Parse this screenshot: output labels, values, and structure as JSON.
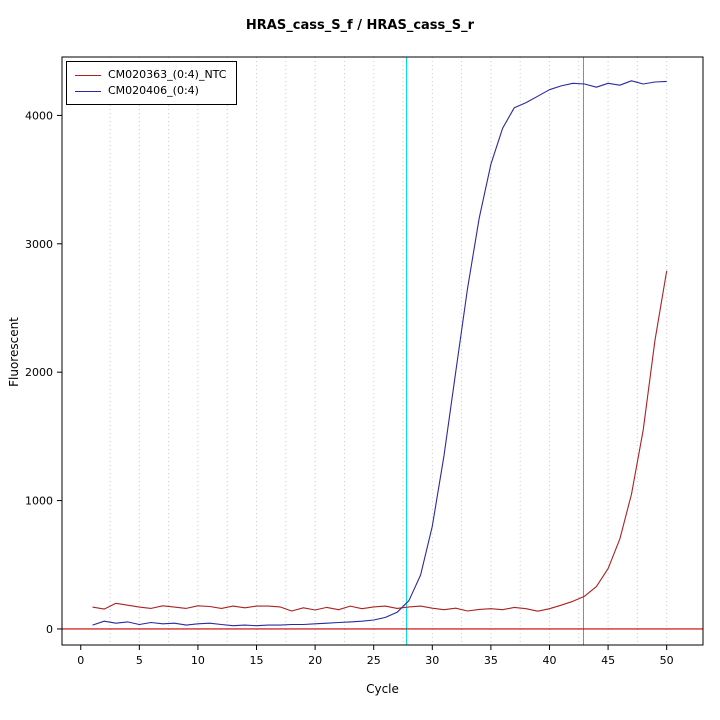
{
  "title": "HRAS_cass_S_f / HRAS_cass_S_r",
  "chart_data": {
    "type": "line",
    "title": "HRAS_cass_S_f / HRAS_cass_S_r",
    "xlabel": "Cycle",
    "ylabel": "Fluorescent",
    "xlim": [
      -1.6,
      53.1
    ],
    "ylim": [
      -125,
      4455
    ],
    "x_ticks": [
      0,
      5,
      10,
      15,
      20,
      25,
      30,
      35,
      40,
      45,
      50
    ],
    "y_ticks": [
      0,
      1000,
      2000,
      3000,
      4000
    ],
    "grid_x": [
      2.5,
      5,
      7.5,
      10,
      12.5,
      15,
      17.5,
      20,
      22.5,
      25,
      27.5,
      30,
      32.5,
      35,
      37.5,
      40,
      42.5,
      45,
      47.5,
      50
    ],
    "grid_style": "dotted",
    "grid_color": "#c8c8c8",
    "legend_position": "top-left",
    "cycles": [
      1,
      2,
      3,
      4,
      5,
      6,
      7,
      8,
      9,
      10,
      11,
      12,
      13,
      14,
      15,
      16,
      17,
      18,
      19,
      20,
      21,
      22,
      23,
      24,
      25,
      26,
      27,
      28,
      29,
      30,
      31,
      32,
      33,
      34,
      35,
      36,
      37,
      38,
      39,
      40,
      41,
      42,
      43,
      44,
      45,
      46,
      47,
      48,
      49,
      50
    ],
    "series": [
      {
        "name": "CM020363_(0:4)_NTC",
        "color": "#aa2222",
        "values": [
          170,
          155,
          200,
          185,
          170,
          160,
          180,
          170,
          160,
          180,
          175,
          160,
          178,
          165,
          178,
          178,
          172,
          140,
          165,
          148,
          168,
          150,
          178,
          158,
          172,
          178,
          160,
          172,
          178,
          162,
          150,
          162,
          140,
          152,
          158,
          150,
          168,
          158,
          138,
          158,
          185,
          215,
          255,
          330,
          470,
          700,
          1050,
          1550,
          2250,
          2790
        ]
      },
      {
        "name": "CM020406_(0:4)",
        "color": "#2a2aa0",
        "values": [
          30,
          60,
          45,
          55,
          35,
          50,
          40,
          45,
          30,
          40,
          45,
          35,
          25,
          30,
          25,
          30,
          30,
          35,
          35,
          40,
          45,
          50,
          55,
          60,
          70,
          90,
          130,
          220,
          420,
          800,
          1350,
          2000,
          2650,
          3200,
          3620,
          3900,
          4060,
          4100,
          4150,
          4200,
          4230,
          4250,
          4245,
          4220,
          4250,
          4235,
          4270,
          4245,
          4260,
          4265
        ]
      }
    ],
    "vlines": [
      {
        "x": 27.8,
        "color": "#00dddd",
        "label": "threshold-cycle-marker-cyan"
      },
      {
        "x": 42.9,
        "color": "#dd6666",
        "label": "threshold-cycle-marker-red"
      }
    ],
    "hlines": [
      {
        "y": 0,
        "color": "#cc0000",
        "label": "baseline-threshold"
      }
    ]
  }
}
